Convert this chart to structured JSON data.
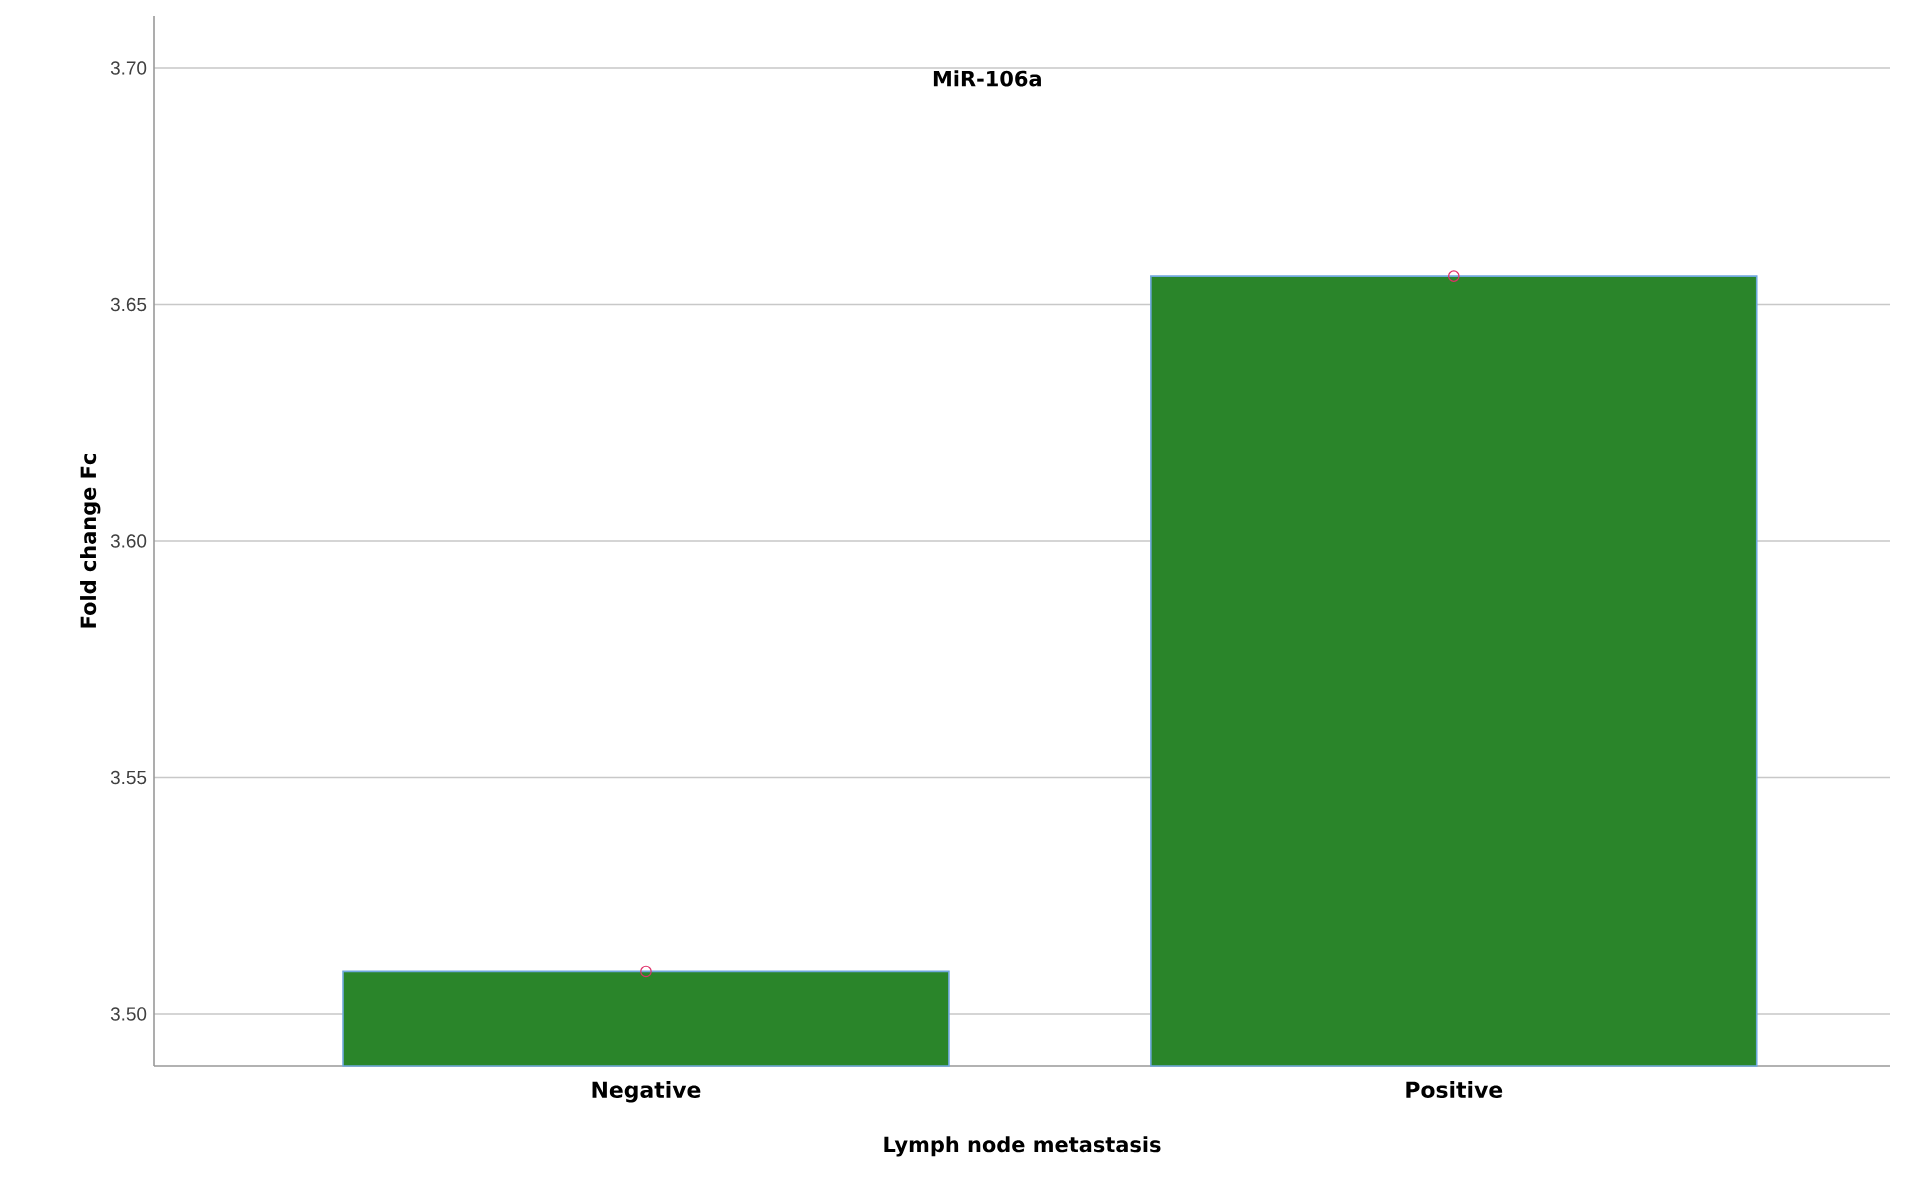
{
  "chart_data": {
    "type": "bar",
    "title": "MiR-106a",
    "xlabel": "Lymph node metastasis",
    "ylabel": "Fold change Fc",
    "categories": [
      "Negative",
      "Positive"
    ],
    "series": [
      {
        "color": "#2a852a",
        "values": [
          3.509,
          3.656
        ]
      },
      {
        "type": "scatter",
        "color": "#e0306a",
        "marker": "circle",
        "x": [
          "Negative",
          "Positive"
        ],
        "values": [
          3.509,
          3.656
        ]
      }
    ],
    "ylim": [
      3.489,
      3.711
    ],
    "yticks": [
      {
        "value": 3.5,
        "label": "3.50"
      },
      {
        "value": 3.55,
        "label": "3.55"
      },
      {
        "value": 3.6,
        "label": "3.60"
      },
      {
        "value": 3.65,
        "label": "3.65"
      },
      {
        "value": 3.7,
        "label": "3.70"
      }
    ],
    "grid": "y"
  }
}
